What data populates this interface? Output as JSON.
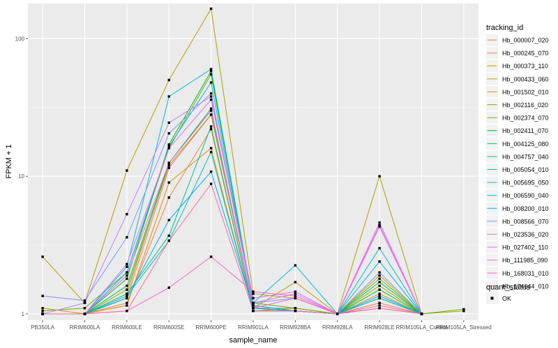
{
  "chart_data": {
    "type": "line",
    "xlabel": "sample_name",
    "ylabel": "FPKM + 1",
    "yscale": "log10",
    "ylim": [
      0.9,
      180
    ],
    "yticks": [
      1,
      10,
      100
    ],
    "yticks_labels": [
      "1",
      "10",
      "100"
    ],
    "categories": [
      "PB350LA",
      "RRIM600LA",
      "RRIM600LE",
      "RRIM600SE",
      "RRIM600PE",
      "RRIM901LA",
      "RRIM928BA",
      "RRIM928LA",
      "RRIM928LE",
      "RRIM105LA_Control",
      "RRIM105LA_Stressed"
    ],
    "legend": {
      "title": "tracking_id",
      "position": "right"
    },
    "legend2": {
      "title": "quant_status",
      "entries": [
        "OK"
      ]
    },
    "grid": true,
    "series": [
      {
        "name": "Hb_000007_020",
        "color": "#F8766D",
        "values": [
          1.0,
          1.0,
          1.3,
          11.5,
          28,
          1.1,
          1.1,
          1.0,
          1.1,
          1.0,
          null
        ]
      },
      {
        "name": "Hb_000245_070",
        "color": "#EC823C",
        "values": [
          1.0,
          1.0,
          1.2,
          7.0,
          22,
          1.05,
          1.05,
          1.0,
          1.2,
          1.0,
          null
        ]
      },
      {
        "name": "Hb_000373_110",
        "color": "#DB8E00",
        "values": [
          1.0,
          1.0,
          1.15,
          9.0,
          16,
          1.05,
          1.1,
          1.0,
          1.4,
          1.0,
          null
        ]
      },
      {
        "name": "Hb_000433_060",
        "color": "#C79800",
        "values": [
          1.1,
          1.0,
          1.4,
          12.5,
          30,
          1.1,
          1.7,
          1.0,
          1.9,
          1.0,
          null
        ]
      },
      {
        "name": "Hb_001502_010",
        "color": "#AEA200",
        "values": [
          2.6,
          1.2,
          11.0,
          50,
          165,
          1.4,
          1.3,
          1.0,
          10.0,
          1.0,
          1.05
        ]
      },
      {
        "name": "Hb_002116_020",
        "color": "#8FAA00",
        "values": [
          1.0,
          1.0,
          1.5,
          12.0,
          28,
          1.1,
          1.05,
          1.0,
          1.6,
          1.0,
          null
        ]
      },
      {
        "name": "Hb_002374_070",
        "color": "#64B200",
        "values": [
          1.05,
          1.1,
          2.0,
          16,
          55,
          1.2,
          1.1,
          1.0,
          1.8,
          1.0,
          1.08
        ]
      },
      {
        "name": "Hb_002411_070",
        "color": "#00B81B",
        "values": [
          1.0,
          1.0,
          1.8,
          17,
          58,
          1.15,
          1.05,
          1.0,
          1.5,
          1.0,
          null
        ]
      },
      {
        "name": "Hb_004125_080",
        "color": "#00BD5C",
        "values": [
          1.0,
          1.0,
          1.6,
          12.5,
          31,
          1.1,
          1.05,
          1.0,
          1.7,
          1.0,
          null
        ]
      },
      {
        "name": "Hb_004757_040",
        "color": "#00C08E",
        "values": [
          1.0,
          1.0,
          1.4,
          3.7,
          23,
          1.05,
          1.05,
          1.0,
          1.3,
          1.0,
          null
        ]
      },
      {
        "name": "Hb_005054_010",
        "color": "#00C1B7",
        "values": [
          1.0,
          1.0,
          1.35,
          3.4,
          15,
          1.05,
          1.05,
          1.0,
          1.3,
          1.0,
          null
        ]
      },
      {
        "name": "Hb_005695_050",
        "color": "#00BDD4",
        "values": [
          1.0,
          1.0,
          2.2,
          38,
          60,
          1.2,
          2.25,
          1.0,
          3.0,
          1.0,
          null
        ]
      },
      {
        "name": "Hb_006590_040",
        "color": "#00B5EE",
        "values": [
          1.0,
          1.0,
          2.0,
          16.5,
          48,
          1.15,
          1.05,
          1.0,
          2.4,
          1.0,
          null
        ]
      },
      {
        "name": "Hb_008200_010",
        "color": "#00A7FF",
        "values": [
          1.0,
          1.0,
          1.3,
          4.8,
          10.8,
          1.1,
          1.05,
          1.0,
          1.35,
          1.0,
          null
        ]
      },
      {
        "name": "Hb_008566_070",
        "color": "#7F96FF",
        "values": [
          1.35,
          1.25,
          3.6,
          20.5,
          40,
          1.2,
          1.3,
          1.0,
          2.0,
          1.0,
          null
        ]
      },
      {
        "name": "Hb_023536_020",
        "color": "#BC81FF",
        "values": [
          1.0,
          1.2,
          5.3,
          24.5,
          38,
          1.2,
          1.4,
          1.0,
          4.3,
          1.0,
          null
        ]
      },
      {
        "name": "Hb_027402_110",
        "color": "#E26EF7",
        "values": [
          1.0,
          1.0,
          2.3,
          16,
          36,
          1.3,
          1.45,
          1.0,
          4.6,
          1.0,
          null
        ]
      },
      {
        "name": "Hb_111985_090",
        "color": "#F863DF",
        "values": [
          1.0,
          1.0,
          1.9,
          12.5,
          30,
          1.1,
          1.3,
          1.0,
          4.4,
          1.0,
          null
        ]
      },
      {
        "name": "Hb_168031_010",
        "color": "#FF62BF",
        "values": [
          1.0,
          1.0,
          1.05,
          1.55,
          2.6,
          1.45,
          1.35,
          1.0,
          1.15,
          1.0,
          null
        ]
      },
      {
        "name": "Hb_174644_010",
        "color": "#FF6A98",
        "values": [
          1.0,
          1.0,
          1.05,
          3.4,
          8.8,
          1.05,
          1.05,
          1.0,
          1.1,
          1.0,
          null
        ]
      }
    ]
  }
}
